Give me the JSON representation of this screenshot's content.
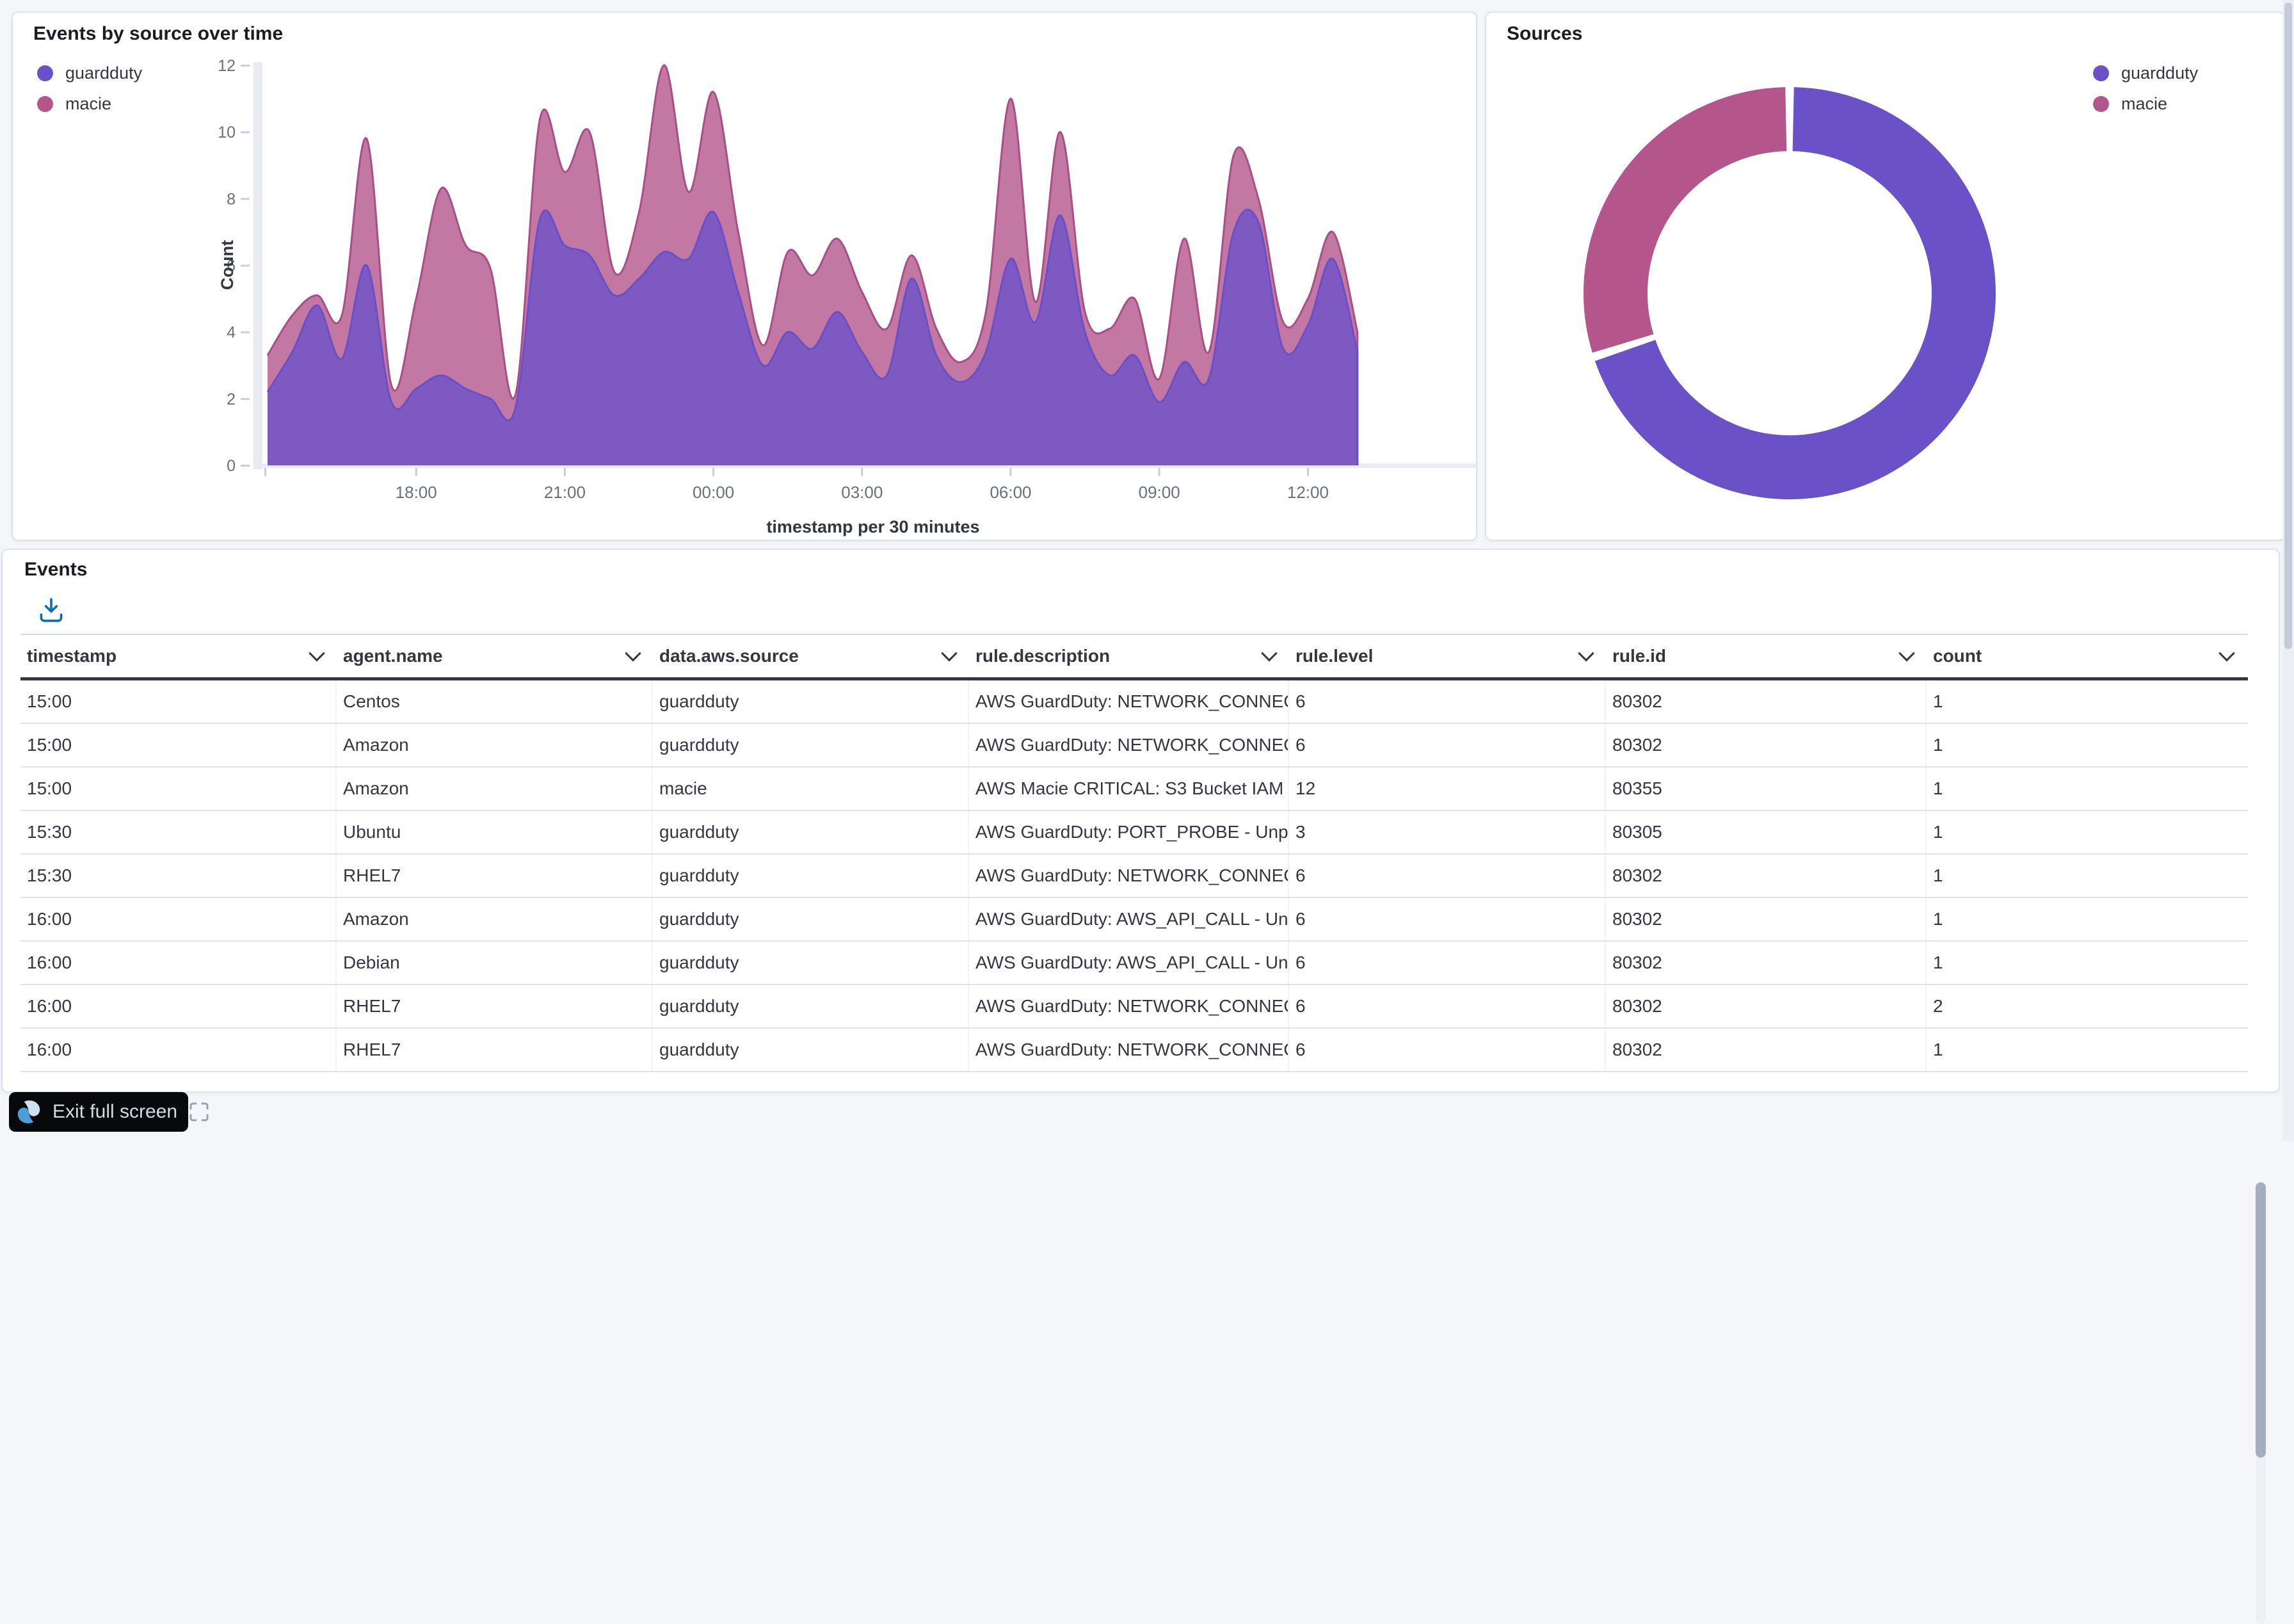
{
  "events_panel": {
    "title": "Events",
    "columns": [
      "timestamp",
      "agent.name",
      "data.aws.source",
      "rule.description",
      "rule.level",
      "rule.id",
      "count"
    ],
    "rows": [
      [
        "15:00",
        "Centos",
        "guardduty",
        "AWS GuardDuty: NETWORK_CONNECTION",
        "6",
        "80302",
        "1"
      ],
      [
        "15:00",
        "Amazon",
        "guardduty",
        "AWS GuardDuty: NETWORK_CONNECTION",
        "6",
        "80302",
        "1"
      ],
      [
        "15:00",
        "Amazon",
        "macie",
        "AWS Macie CRITICAL: S3 Bucket IAM",
        "12",
        "80355",
        "1"
      ],
      [
        "15:30",
        "Ubuntu",
        "guardduty",
        "AWS GuardDuty: PORT_PROBE - Unprotected port",
        "3",
        "80305",
        "1"
      ],
      [
        "15:30",
        "RHEL7",
        "guardduty",
        "AWS GuardDuty: NETWORK_CONNECTION",
        "6",
        "80302",
        "1"
      ],
      [
        "16:00",
        "Amazon",
        "guardduty",
        "AWS GuardDuty: AWS_API_CALL - Unusual",
        "6",
        "80302",
        "1"
      ],
      [
        "16:00",
        "Debian",
        "guardduty",
        "AWS GuardDuty: AWS_API_CALL - Unusual",
        "6",
        "80302",
        "1"
      ],
      [
        "16:00",
        "RHEL7",
        "guardduty",
        "AWS GuardDuty: NETWORK_CONNECTION",
        "6",
        "80302",
        "2"
      ],
      [
        "16:00",
        "RHEL7",
        "guardduty",
        "AWS GuardDuty: NETWORK_CONNECTION",
        "6",
        "80302",
        "1"
      ]
    ]
  },
  "exit_button": {
    "label": "Exit full screen"
  },
  "colors": {
    "guardduty": "#6b51c8",
    "macie": "#b4568c",
    "axis_text": "#69707d",
    "axis_band": "#e8ebf1",
    "download_icon_blue": "#0a6cb5"
  },
  "chart_data": [
    {
      "type": "area",
      "stacked": true,
      "title": "Events by source over time",
      "xlabel": "timestamp per 30 minutes",
      "ylabel": "Count",
      "ylim": [
        0,
        12
      ],
      "y_ticks": [
        0,
        2,
        4,
        6,
        8,
        10,
        12
      ],
      "x_tick_labels": [
        "18:00",
        "21:00",
        "00:00",
        "03:00",
        "06:00",
        "09:00",
        "12:00"
      ],
      "x_start": "15:00",
      "x_interval_minutes": 30,
      "legend_position": "top-left",
      "grid": false,
      "series": [
        {
          "name": "guardduty",
          "color": "#6b51c8",
          "values": [
            2.2,
            3.4,
            4.8,
            3.2,
            6,
            1.9,
            2.3,
            2.7,
            2.3,
            2,
            1.7,
            7.4,
            6.6,
            6.3,
            5.1,
            5.6,
            6.4,
            6.2,
            7.6,
            5.2,
            3,
            4,
            3.5,
            4.6,
            3.4,
            2.7,
            5.6,
            3.3,
            2.5,
            3.4,
            6.2,
            4.3,
            7.5,
            4,
            2.7,
            3.3,
            1.9,
            3.1,
            2.6,
            7,
            7.3,
            3.5,
            4.2,
            6.2,
            3.4
          ]
        },
        {
          "name": "macie",
          "color": "#b4568c",
          "values": [
            1.1,
            1.1,
            0.3,
            1.3,
            3.8,
            0.5,
            2.7,
            5.6,
            4.3,
            3.9,
            0.4,
            3,
            2.2,
            3.7,
            0.7,
            2,
            5.6,
            2,
            3.6,
            1.8,
            0.6,
            2.4,
            2.2,
            2.2,
            1.8,
            1.4,
            0.7,
            0.8,
            0.6,
            1.2,
            4.8,
            0.6,
            2.5,
            0.6,
            1.4,
            1.7,
            0.7,
            3.7,
            0.8,
            2.3,
            0.7,
            0.8,
            0.8,
            0.8,
            0.6
          ]
        }
      ]
    },
    {
      "type": "pie",
      "donut": true,
      "title": "Sources",
      "labels": [
        "guardduty",
        "macie"
      ],
      "values": [
        70,
        30
      ],
      "colors": [
        "#6b51c8",
        "#b4568c"
      ],
      "legend_position": "top-right"
    }
  ]
}
